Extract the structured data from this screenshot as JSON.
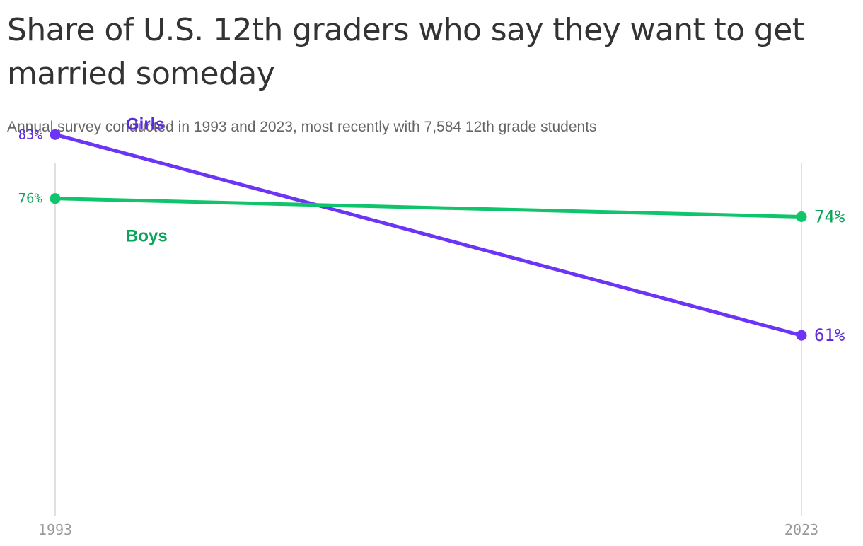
{
  "chart_data": {
    "type": "line",
    "title": "Share of U.S. 12th graders who say they want to get married someday",
    "subtitle": "Annual survey conducted in 1993 and 2023, most recently with 7,584 12th grade students",
    "x": [
      "1993",
      "2023"
    ],
    "series": [
      {
        "name": "Girls",
        "values": [
          83,
          61
        ],
        "value_labels": [
          "83%",
          "61%"
        ],
        "color": "#6c34f4",
        "label_color": "#5b2bd9"
      },
      {
        "name": "Boys",
        "values": [
          76,
          74
        ],
        "value_labels": [
          "76%",
          "74%"
        ],
        "color": "#0fc46a",
        "label_color": "#0aa35a"
      }
    ],
    "ylim": [
      48,
      90
    ],
    "grid": "vertical",
    "gridline_color": "#e0e0e0",
    "xlabel": "",
    "ylabel": ""
  }
}
